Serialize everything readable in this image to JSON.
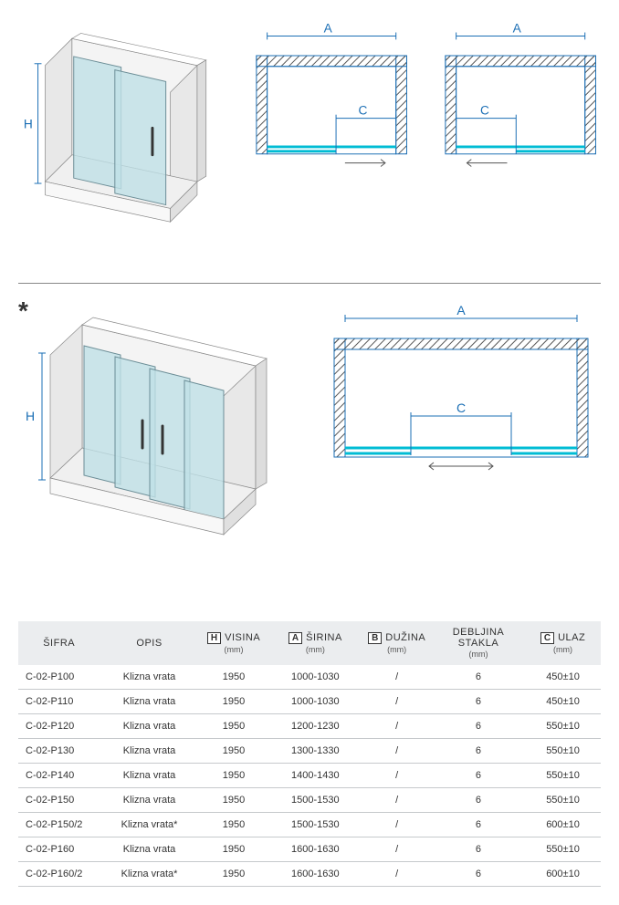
{
  "colors": {
    "blueprint": "#1b6fb5",
    "glass": "#bfe0e6",
    "glass_edge": "#6b8d96",
    "wall": "#ffffff",
    "wall_hatch": "#555",
    "header_bg": "#ebedef",
    "row_border": "#c6c9cc",
    "track_cyan": "#00bcd4"
  },
  "dim_labels": {
    "H": "H",
    "A": "A",
    "C": "C"
  },
  "asterisk": "*",
  "table": {
    "headers": [
      {
        "box": null,
        "main": "ŠIFRA",
        "unit": null
      },
      {
        "box": null,
        "main": "OPIS",
        "unit": null
      },
      {
        "box": "H",
        "main": "VISINA",
        "unit": "(mm)"
      },
      {
        "box": "A",
        "main": "ŠIRINA",
        "unit": "(mm)"
      },
      {
        "box": "B",
        "main": "DUŽINA",
        "unit": "(mm)"
      },
      {
        "box": null,
        "main": "DEBLJINA STAKLA",
        "unit": "(mm)"
      },
      {
        "box": "C",
        "main": "ULAZ",
        "unit": "(mm)"
      }
    ],
    "rows": [
      [
        "C-02-P100",
        "Klizna vrata",
        "1950",
        "1000-1030",
        "/",
        "6",
        "450±10"
      ],
      [
        "C-02-P110",
        "Klizna vrata",
        "1950",
        "1000-1030",
        "/",
        "6",
        "450±10"
      ],
      [
        "C-02-P120",
        "Klizna vrata",
        "1950",
        "1200-1230",
        "/",
        "6",
        "550±10"
      ],
      [
        "C-02-P130",
        "Klizna vrata",
        "1950",
        "1300-1330",
        "/",
        "6",
        "550±10"
      ],
      [
        "C-02-P140",
        "Klizna vrata",
        "1950",
        "1400-1430",
        "/",
        "6",
        "550±10"
      ],
      [
        "C-02-P150",
        "Klizna vrata",
        "1950",
        "1500-1530",
        "/",
        "6",
        "550±10"
      ],
      [
        "C-02-P150/2",
        "Klizna vrata*",
        "1950",
        "1500-1530",
        "/",
        "6",
        "600±10"
      ],
      [
        "C-02-P160",
        "Klizna vrata",
        "1950",
        "1600-1630",
        "/",
        "6",
        "550±10"
      ],
      [
        "C-02-P160/2",
        "Klizna vrata*",
        "1950",
        "1600-1630",
        "/",
        "6",
        "600±10"
      ]
    ],
    "col_widths": [
      "14%",
      "17%",
      "12%",
      "16%",
      "12%",
      "16%",
      "13%"
    ]
  }
}
